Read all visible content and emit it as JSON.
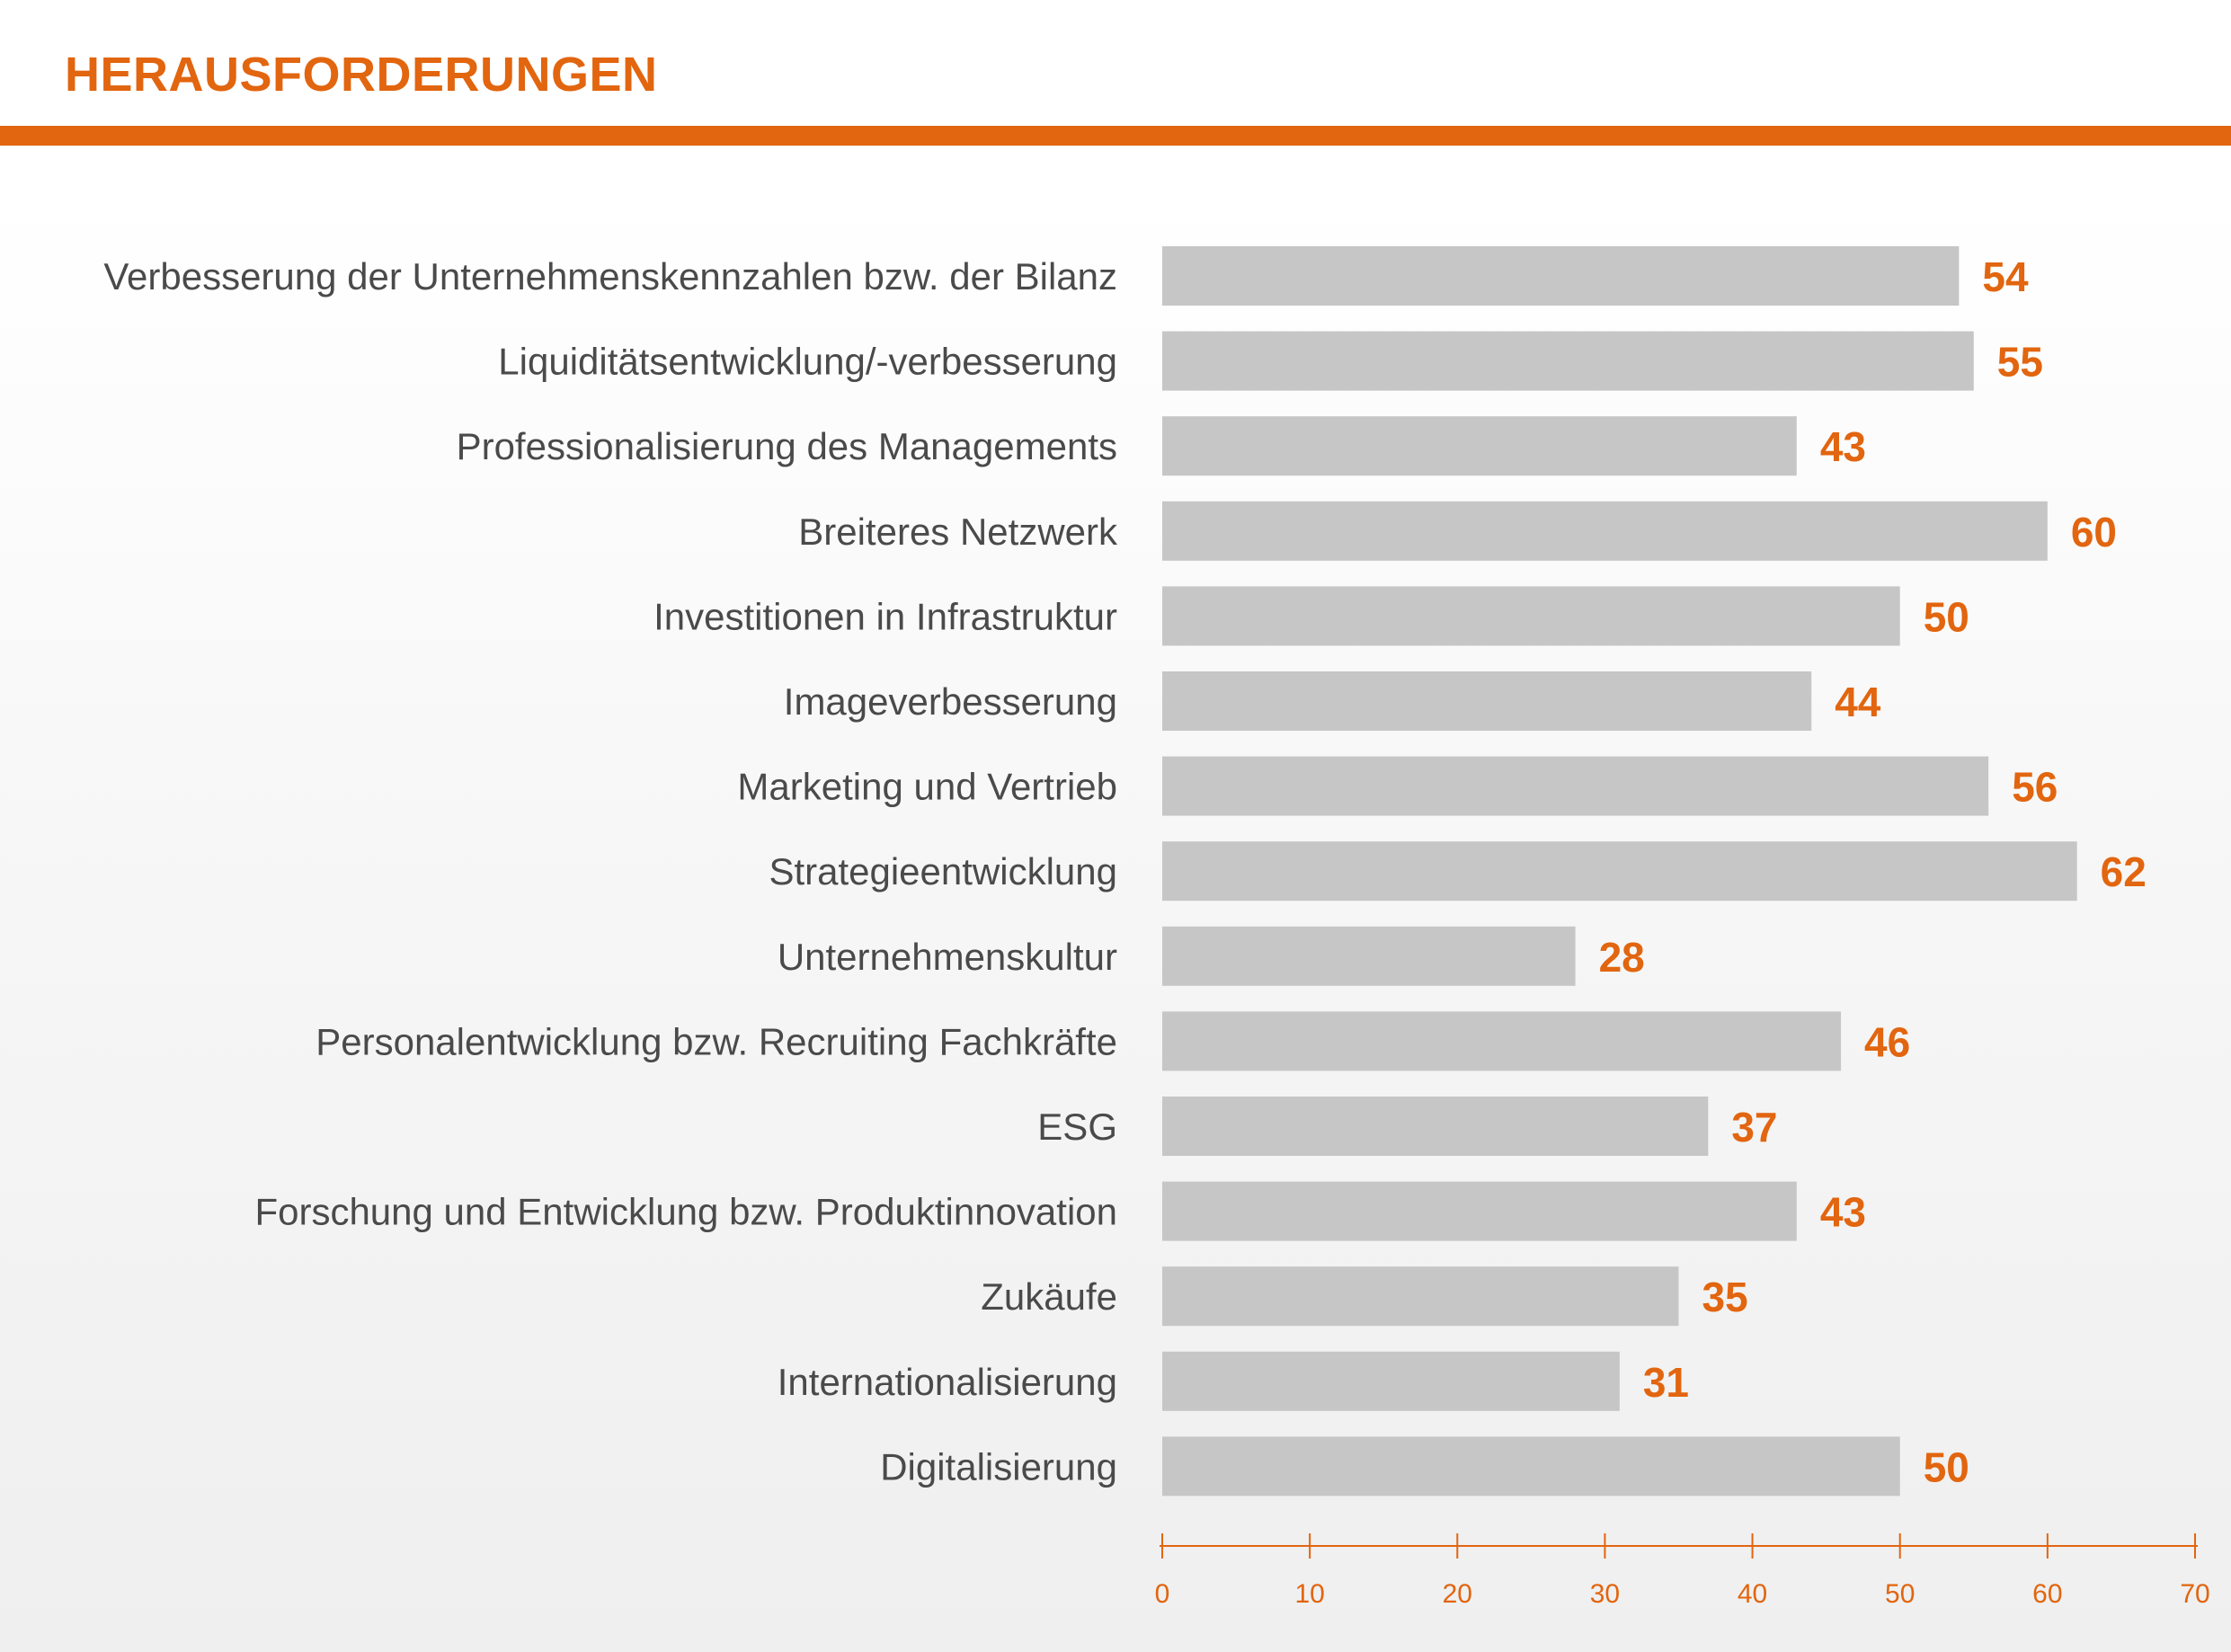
{
  "title": "HERAUSFORDERUNGEN",
  "colors": {
    "accent": "#e2650f",
    "bar": "#c6c6c6",
    "label": "#4a4a4a"
  },
  "chart_data": {
    "type": "bar",
    "orientation": "horizontal",
    "categories": [
      "Verbesserung der Unternehmenskennzahlen bzw. der Bilanz",
      "Liquiditätsentwicklung/-verbesserung",
      "Professionalisierung des Managements",
      "Breiteres Netzwerk",
      "Investitionen in Infrastruktur",
      "Imageverbesserung",
      "Marketing und Vertrieb",
      "Strategieentwicklung",
      "Unternehmenskultur",
      "Personalentwicklung bzw. Recruiting Fachkräfte",
      "ESG",
      "Forschung und Entwicklung bzw. Produktinnovation",
      "Zukäufe",
      "Internationalisierung",
      "Digitalisierung"
    ],
    "values": [
      54,
      55,
      43,
      60,
      50,
      44,
      56,
      62,
      28,
      46,
      37,
      43,
      35,
      31,
      50
    ],
    "xlim": [
      0,
      70
    ],
    "xticks": [
      0,
      10,
      20,
      30,
      40,
      50,
      60,
      70
    ],
    "grid": false,
    "legend": "none"
  }
}
